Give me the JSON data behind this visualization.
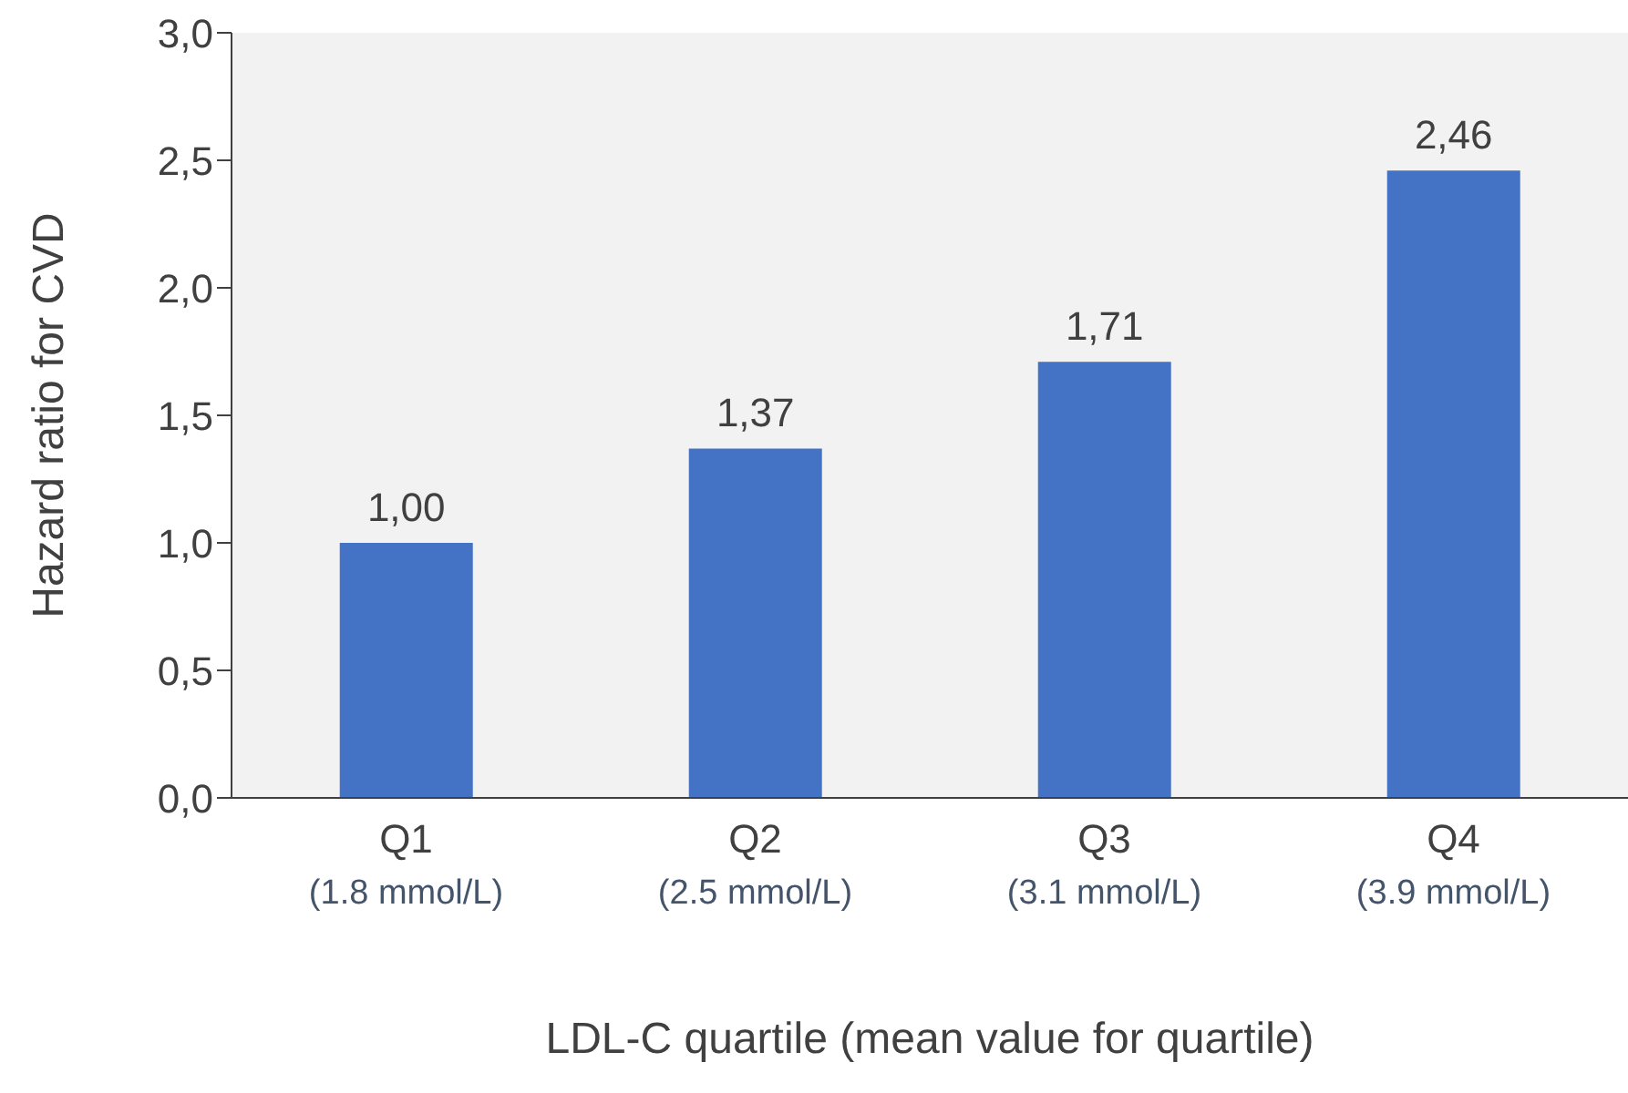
{
  "chart_data": {
    "type": "bar",
    "xlabel": "LDL-C quartile (mean value for quartile)",
    "ylabel": "Hazard ratio for CVD",
    "categories": [
      "Q1\n(1.8 mmol/L)",
      "Q2\n(2.5 mmol/L)",
      "Q3\n(3.1 mmol/L)",
      "Q4\n(3.9 mmol/L)"
    ],
    "values": [
      1.0,
      1.37,
      1.71,
      2.46
    ],
    "color": "#4472c4",
    "value_labels": [
      "1,00",
      "1,37",
      "1,71",
      "2,46"
    ],
    "ylim": [
      0,
      3
    ],
    "yticks": [
      {
        "value": 0,
        "label": "0,0"
      },
      {
        "value": 0.5,
        "label": "0,5"
      },
      {
        "value": 1,
        "label": "1,0"
      },
      {
        "value": 1.5,
        "label": "1,5"
      },
      {
        "value": 2,
        "label": "2,0"
      },
      {
        "value": 2.5,
        "label": "2,5"
      },
      {
        "value": 3,
        "label": "3,0"
      }
    ],
    "grid": false
  }
}
